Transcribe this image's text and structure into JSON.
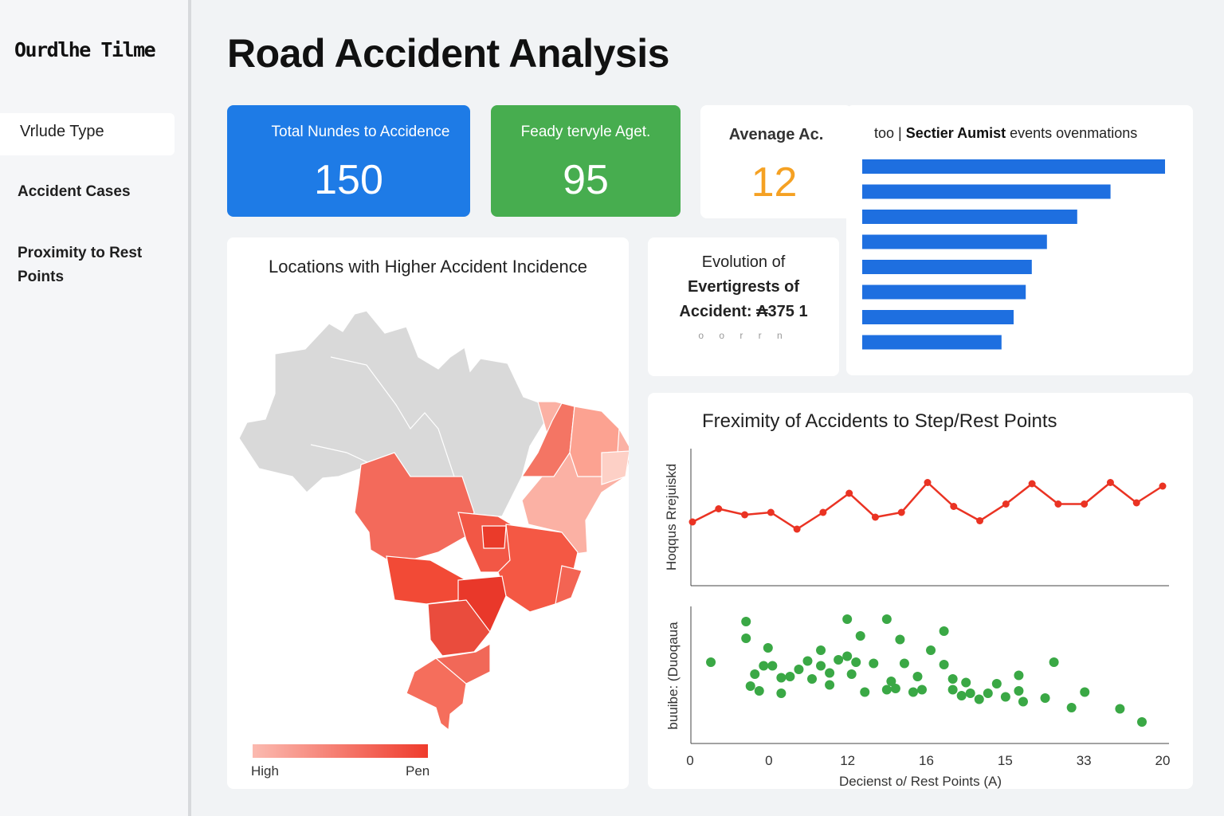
{
  "sidebar": {
    "logo": "Ourdlhe Tilme",
    "items": [
      {
        "label": "Vrlude Type",
        "active": true
      },
      {
        "label": "Accident Cases",
        "active": false
      },
      {
        "label": "Proximity to Rest Points",
        "active": false
      }
    ]
  },
  "header": {
    "title": "Road Accident Analysis"
  },
  "kpis": {
    "total": {
      "label": "Total Nundes to Accidence",
      "value": "150",
      "color": "#1e7be6"
    },
    "age": {
      "label": "Feady tervyle Aget.",
      "value": "95",
      "color": "#47ad4f"
    },
    "average": {
      "label": "Avenage Ac.",
      "value": "12",
      "color": "#f5a123"
    }
  },
  "bar_panel": {
    "title_prefix": "too |",
    "title_bold": "Sectier Aumist",
    "title_suffix": "events ovenmations"
  },
  "map_panel": {
    "title": "Locations with Higher Accident Incidence",
    "legend_low": "High",
    "legend_high": "Pen",
    "legend_colors": [
      "#fbbab0",
      "#ef3b2c"
    ],
    "unshaded_color": "#d9d9d9"
  },
  "evolution_panel": {
    "line1": "Evolution of",
    "line2": "Evertigrests of",
    "line3": "Accident: ₳375 1",
    "dots": "o o r r n"
  },
  "proximity_panel": {
    "title": "Freximity of Accidents to Step/Rest Points",
    "line_ylabel": "Hoqqus Rrejuiskd",
    "scatter_ylabel": "buuibe: (Duoqaua",
    "xlabel": "Decienst o/ Rest Points  (A)",
    "x_tick_labels": [
      "0",
      "0",
      "12",
      "16",
      "15",
      "33",
      "20"
    ]
  },
  "chart_data": [
    {
      "type": "bar",
      "orientation": "horizontal",
      "color": "#1e6fe0",
      "values": [
        100,
        82,
        71,
        61,
        56,
        54,
        50,
        46
      ],
      "xlim": [
        0,
        100
      ]
    },
    {
      "type": "line",
      "color": "#ea3323",
      "values": [
        42,
        53,
        48,
        50,
        36,
        50,
        66,
        46,
        50,
        75,
        55,
        43,
        57,
        74,
        57,
        57,
        75,
        58,
        72
      ],
      "ylim": [
        0,
        100
      ]
    },
    {
      "type": "scatter",
      "color": "#3aa845",
      "xlim": [
        0,
        100
      ],
      "ylim": [
        0,
        100
      ],
      "points": [
        [
          2,
          58
        ],
        [
          10,
          92
        ],
        [
          10,
          78
        ],
        [
          11,
          38
        ],
        [
          12,
          48
        ],
        [
          14,
          55
        ],
        [
          13,
          34
        ],
        [
          15,
          70
        ],
        [
          16,
          55
        ],
        [
          18,
          45
        ],
        [
          18,
          32
        ],
        [
          20,
          46
        ],
        [
          22,
          52
        ],
        [
          24,
          59
        ],
        [
          25,
          44
        ],
        [
          27,
          55
        ],
        [
          27,
          68
        ],
        [
          29,
          49
        ],
        [
          29,
          39
        ],
        [
          31,
          60
        ],
        [
          33,
          94
        ],
        [
          33,
          63
        ],
        [
          34,
          48
        ],
        [
          35,
          58
        ],
        [
          36,
          80
        ],
        [
          37,
          33
        ],
        [
          39,
          57
        ],
        [
          42,
          94
        ],
        [
          42,
          35
        ],
        [
          43,
          42
        ],
        [
          44,
          36
        ],
        [
          45,
          77
        ],
        [
          46,
          57
        ],
        [
          48,
          33
        ],
        [
          49,
          46
        ],
        [
          50,
          35
        ],
        [
          52,
          68
        ],
        [
          55,
          84
        ],
        [
          55,
          56
        ],
        [
          57,
          44
        ],
        [
          57,
          35
        ],
        [
          59,
          30
        ],
        [
          60,
          41
        ],
        [
          61,
          32
        ],
        [
          63,
          27
        ],
        [
          65,
          32
        ],
        [
          67,
          40
        ],
        [
          69,
          29
        ],
        [
          72,
          47
        ],
        [
          72,
          34
        ],
        [
          73,
          25
        ],
        [
          78,
          28
        ],
        [
          80,
          58
        ],
        [
          84,
          20
        ],
        [
          87,
          33
        ],
        [
          95,
          19
        ],
        [
          100,
          8
        ]
      ]
    }
  ]
}
